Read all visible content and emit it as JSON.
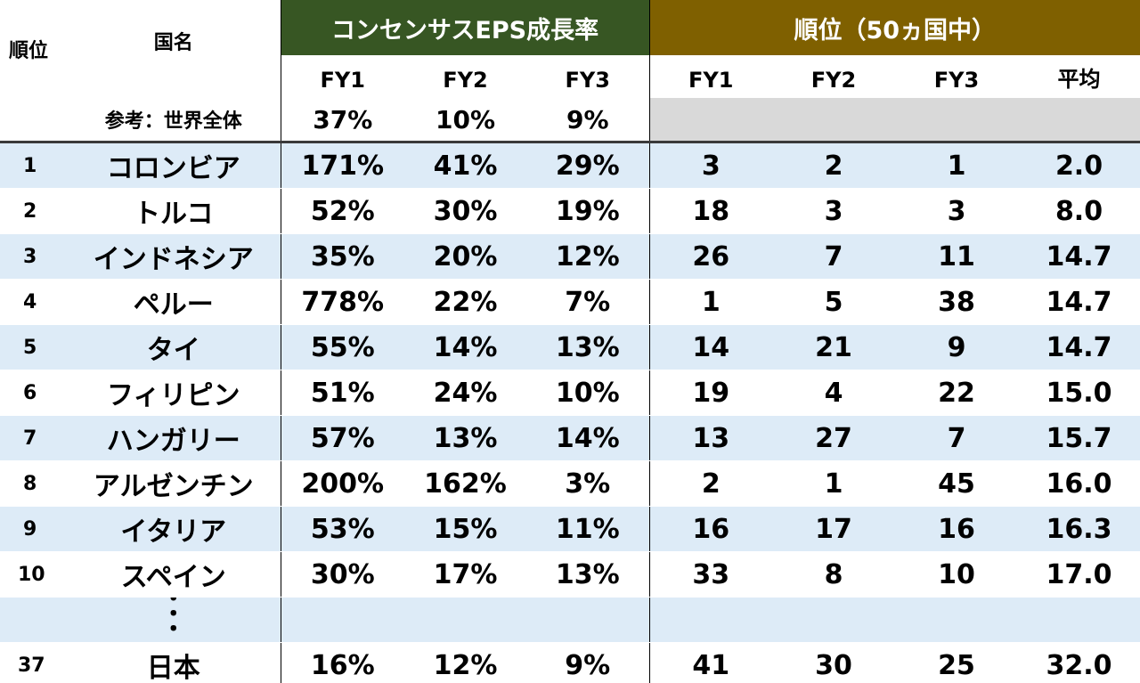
{
  "header": {
    "rank_label": "順位",
    "country_label": "国名",
    "eps_group_label": "コンセンサスEPS成長率",
    "rank_group_label": "順位（50ヵ国中）",
    "eps_cols": [
      "FY1",
      "FY2",
      "FY3"
    ],
    "rank_cols": [
      "FY1",
      "FY2",
      "FY3",
      "平均"
    ],
    "world_label": "参考：世界全体",
    "world_values": [
      "37%",
      "10%",
      "9%"
    ]
  },
  "colors": {
    "eps_header_bg": "#375623",
    "rank_header_bg": "#7f6000",
    "stripe_bg": "#ddebf7",
    "gray_bg": "#d9d9d9"
  },
  "rows": [
    {
      "rank": "1",
      "country": "コロンビア",
      "eps": [
        "171%",
        "41%",
        "29%"
      ],
      "ranks": [
        "3",
        "2",
        "1",
        "2.0"
      ]
    },
    {
      "rank": "2",
      "country": "トルコ",
      "eps": [
        "52%",
        "30%",
        "19%"
      ],
      "ranks": [
        "18",
        "3",
        "3",
        "8.0"
      ]
    },
    {
      "rank": "3",
      "country": "インドネシア",
      "eps": [
        "35%",
        "20%",
        "12%"
      ],
      "ranks": [
        "26",
        "7",
        "11",
        "14.7"
      ]
    },
    {
      "rank": "4",
      "country": "ペルー",
      "eps": [
        "778%",
        "22%",
        "7%"
      ],
      "ranks": [
        "1",
        "5",
        "38",
        "14.7"
      ]
    },
    {
      "rank": "5",
      "country": "タイ",
      "eps": [
        "55%",
        "14%",
        "13%"
      ],
      "ranks": [
        "14",
        "21",
        "9",
        "14.7"
      ]
    },
    {
      "rank": "6",
      "country": "フィリピン",
      "eps": [
        "51%",
        "24%",
        "10%"
      ],
      "ranks": [
        "19",
        "4",
        "22",
        "15.0"
      ]
    },
    {
      "rank": "7",
      "country": "ハンガリー",
      "eps": [
        "57%",
        "13%",
        "14%"
      ],
      "ranks": [
        "13",
        "27",
        "7",
        "15.7"
      ]
    },
    {
      "rank": "8",
      "country": "アルゼンチン",
      "eps": [
        "200%",
        "162%",
        "3%"
      ],
      "ranks": [
        "2",
        "1",
        "45",
        "16.0"
      ]
    },
    {
      "rank": "9",
      "country": "イタリア",
      "eps": [
        "53%",
        "15%",
        "11%"
      ],
      "ranks": [
        "16",
        "17",
        "16",
        "16.3"
      ]
    },
    {
      "rank": "10",
      "country": "スペイン",
      "eps": [
        "30%",
        "17%",
        "13%"
      ],
      "ranks": [
        "33",
        "8",
        "10",
        "17.0"
      ]
    }
  ],
  "ellipsis": "・\n・\n・",
  "japan_row": {
    "rank": "37",
    "country": "日本",
    "eps": [
      "16%",
      "12%",
      "9%"
    ],
    "ranks": [
      "41",
      "30",
      "25",
      "32.0"
    ]
  }
}
